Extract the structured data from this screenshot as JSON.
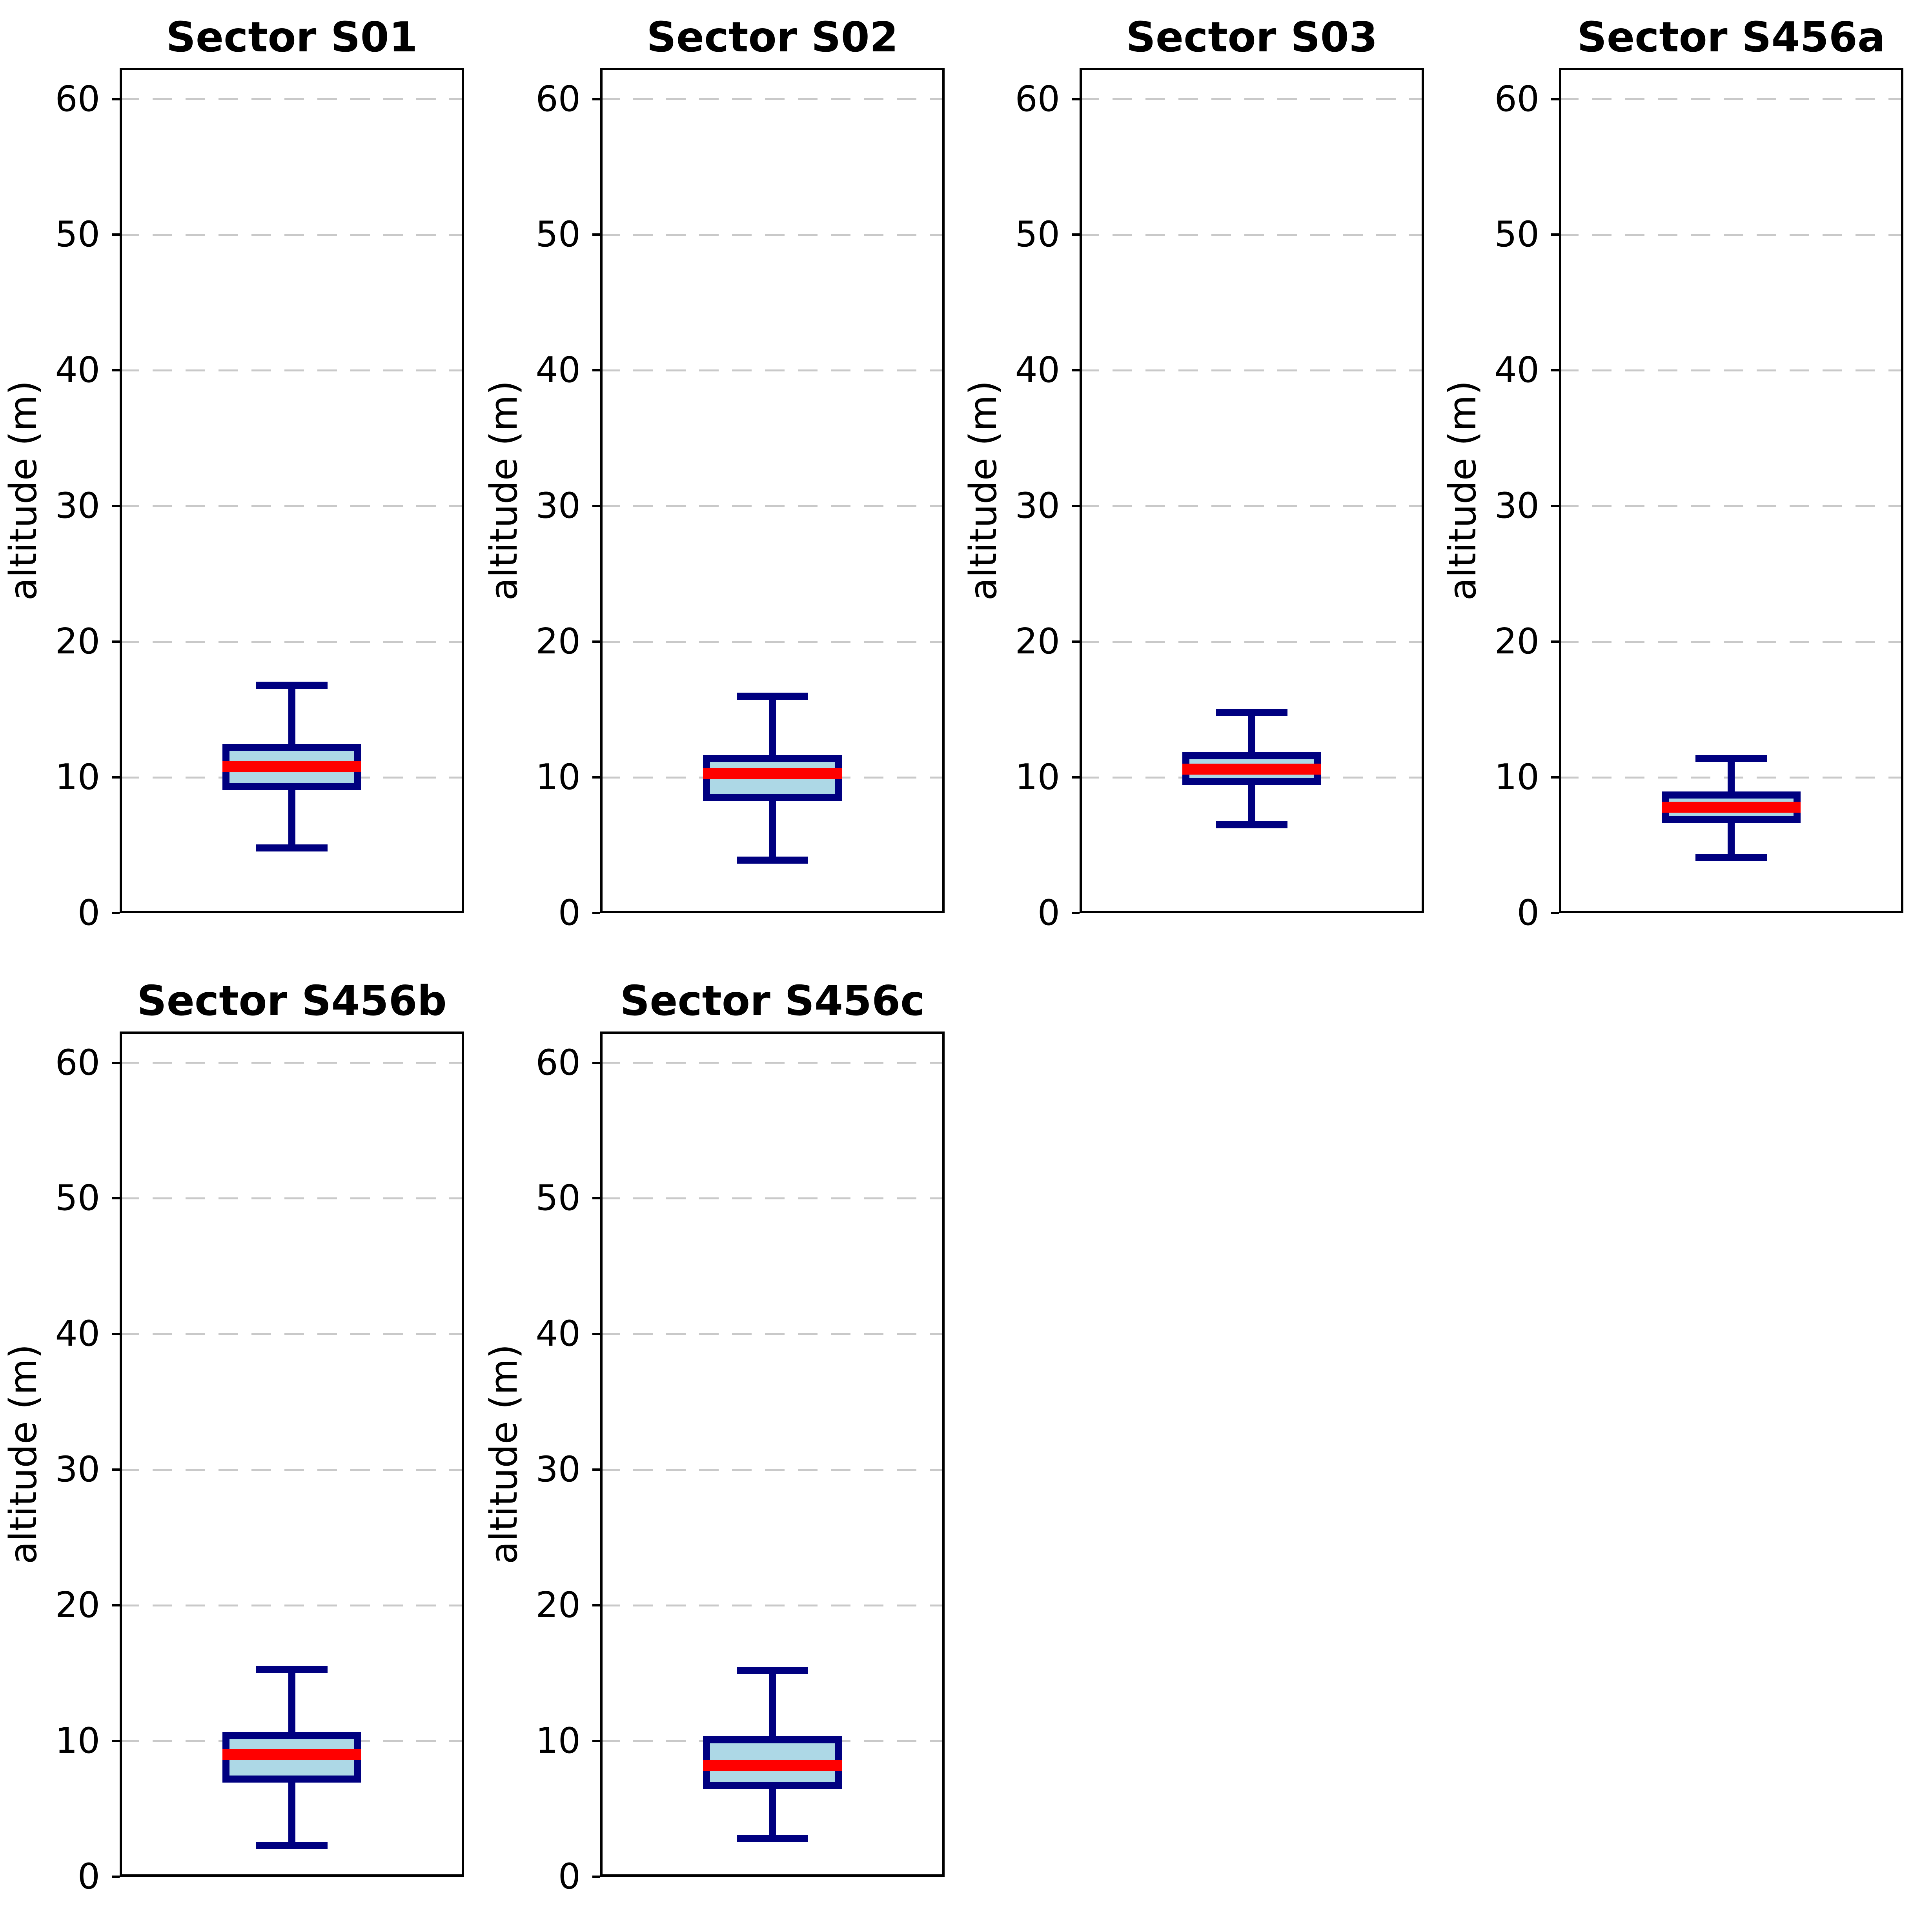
{
  "chart_data": {
    "type": "boxplot",
    "layout": {
      "grid_rows": 2,
      "grid_cols": 4,
      "filled_cells": 6,
      "grid": "dashed horizontal gridlines at every y tick",
      "legend": "none",
      "x_tick_labels": "none"
    },
    "ylabel": "altitude (m)",
    "yticks": [
      0,
      10,
      20,
      30,
      40,
      50,
      60
    ],
    "ylim": [
      0,
      62.3
    ],
    "colors": {
      "box_fill": "#add8e6",
      "box_edge": "#000080",
      "median": "#ff0000",
      "grid": "#c9c9c9",
      "spine": "#000000",
      "text": "#000000",
      "background": "#ffffff"
    },
    "subplots": [
      {
        "title": "Sector S01",
        "row": 0,
        "col": 0,
        "whislo": 4.8,
        "q1": 9.3,
        "med": 10.8,
        "q3": 12.2,
        "whishi": 16.8
      },
      {
        "title": "Sector S02",
        "row": 0,
        "col": 1,
        "whislo": 3.9,
        "q1": 8.5,
        "med": 10.3,
        "q3": 11.4,
        "whishi": 16.0
      },
      {
        "title": "Sector S03",
        "row": 0,
        "col": 2,
        "whislo": 6.5,
        "q1": 9.7,
        "med": 10.6,
        "q3": 11.6,
        "whishi": 14.8
      },
      {
        "title": "Sector S456a",
        "row": 0,
        "col": 3,
        "whislo": 4.1,
        "q1": 6.9,
        "med": 7.8,
        "q3": 8.7,
        "whishi": 11.4
      },
      {
        "title": "Sector S456b",
        "row": 1,
        "col": 0,
        "whislo": 2.3,
        "q1": 7.2,
        "med": 9.0,
        "q3": 10.4,
        "whishi": 15.3
      },
      {
        "title": "Sector S456c",
        "row": 1,
        "col": 1,
        "whislo": 2.8,
        "q1": 6.7,
        "med": 8.2,
        "q3": 10.1,
        "whishi": 15.2
      }
    ]
  }
}
